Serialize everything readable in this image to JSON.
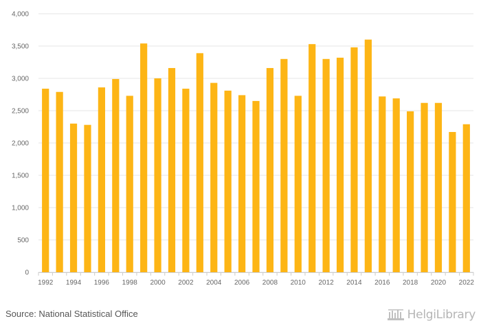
{
  "chart_data": {
    "type": "bar",
    "categories": [
      "1992",
      "1993",
      "1994",
      "1995",
      "1996",
      "1997",
      "1998",
      "1999",
      "2000",
      "2001",
      "2002",
      "2003",
      "2004",
      "2005",
      "2006",
      "2007",
      "2008",
      "2009",
      "2010",
      "2011",
      "2012",
      "2013",
      "2014",
      "2015",
      "2016",
      "2017",
      "2018",
      "2019",
      "2020",
      "2021",
      "2022"
    ],
    "values": [
      2840,
      2790,
      2300,
      2280,
      2860,
      2990,
      2730,
      3540,
      3000,
      3160,
      2840,
      3390,
      2930,
      2810,
      2740,
      2650,
      3160,
      3300,
      2730,
      3530,
      3300,
      3320,
      3480,
      3600,
      2720,
      2690,
      2490,
      2620,
      2620,
      2170,
      2290
    ],
    "x_tick_labels": [
      "1992",
      "1994",
      "1996",
      "1998",
      "2000",
      "2002",
      "2004",
      "2006",
      "2008",
      "2010",
      "2012",
      "2014",
      "2016",
      "2018",
      "2020",
      "2022"
    ],
    "y_ticks": [
      0,
      500,
      1000,
      1500,
      2000,
      2500,
      3000,
      3500,
      4000
    ],
    "y_tick_labels": [
      "0",
      "500",
      "1,000",
      "1,500",
      "2,000",
      "2,500",
      "3,000",
      "3,500",
      "4,000"
    ],
    "ylim": [
      0,
      4000
    ],
    "title": "",
    "xlabel": "",
    "ylabel": "",
    "grid": true,
    "bar_color": "#FDB515"
  },
  "source": "Source: National Statistical Office",
  "brand": {
    "name": "HelgiLibrary",
    "logo_color": "#b5b5b5"
  }
}
